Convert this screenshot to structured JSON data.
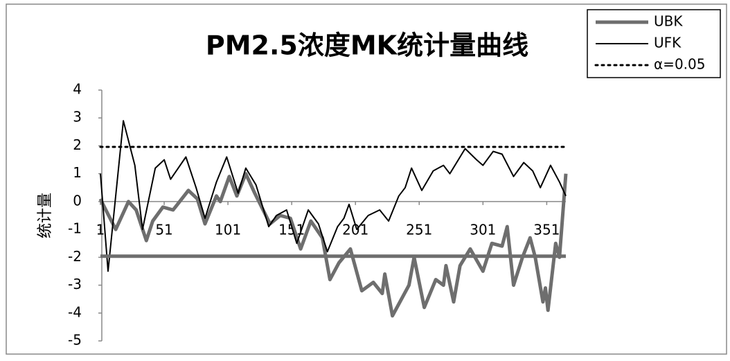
{
  "chart_data": {
    "type": "line",
    "title": "PM2.5浓度MK统计量曲线",
    "y_label": "统计量",
    "xlim": [
      1,
      366
    ],
    "xticks": [
      1,
      51,
      101,
      151,
      201,
      251,
      301,
      351
    ],
    "ylim": [
      -5,
      4
    ],
    "yticks": [
      -5,
      -4,
      -3,
      -2,
      -1,
      0,
      1,
      2,
      3,
      4
    ],
    "legend": "top-right",
    "series": [
      {
        "name": "UBK",
        "color": "#6e6e6e",
        "width": 5,
        "style": "solid",
        "x": [
          1,
          3,
          13,
          23,
          29,
          37,
          42,
          50,
          58,
          70,
          77,
          83,
          92,
          95,
          102,
          108,
          115,
          122,
          134,
          142,
          150,
          158,
          166,
          175,
          181,
          188,
          197,
          206,
          215,
          222,
          224,
          230,
          243,
          247,
          255,
          264,
          270,
          272,
          278,
          283,
          291,
          301,
          308,
          316,
          320,
          325,
          332,
          338,
          342,
          348,
          350,
          352,
          358,
          361,
          366
        ],
        "values": [
          0.1,
          -0.1,
          -1.0,
          0.0,
          -0.3,
          -1.4,
          -0.7,
          -0.2,
          -0.3,
          0.4,
          0.1,
          -0.8,
          0.2,
          0.0,
          0.9,
          0.2,
          1.0,
          0.3,
          -0.8,
          -0.5,
          -0.6,
          -1.7,
          -0.7,
          -1.3,
          -2.8,
          -2.2,
          -1.7,
          -3.2,
          -2.9,
          -3.3,
          -2.6,
          -4.1,
          -3.0,
          -2.0,
          -3.8,
          -2.8,
          -3.0,
          -2.3,
          -3.6,
          -2.3,
          -1.7,
          -2.5,
          -1.5,
          -1.6,
          -0.9,
          -3.0,
          -2.0,
          -1.3,
          -2.0,
          -3.6,
          -3.1,
          -3.9,
          -1.5,
          -2.0,
          1.0
        ]
      },
      {
        "name": "UFK",
        "color": "#000000",
        "width": 2,
        "style": "solid",
        "x": [
          1,
          7,
          19,
          28,
          34,
          44,
          51,
          56,
          68,
          76,
          83,
          92,
          100,
          109,
          115,
          123,
          133,
          139,
          147,
          155,
          164,
          172,
          179,
          187,
          192,
          196,
          202,
          211,
          220,
          227,
          235,
          240,
          245,
          253,
          262,
          270,
          275,
          287,
          296,
          301,
          309,
          316,
          325,
          333,
          340,
          346,
          354,
          361,
          366
        ],
        "values": [
          1.0,
          -2.5,
          2.9,
          1.3,
          -1.0,
          1.2,
          1.5,
          0.8,
          1.6,
          0.5,
          -0.6,
          0.7,
          1.6,
          0.3,
          1.2,
          0.6,
          -0.9,
          -0.5,
          -0.3,
          -1.5,
          -0.3,
          -0.8,
          -1.8,
          -0.9,
          -0.6,
          -0.1,
          -1.0,
          -0.5,
          -0.3,
          -0.7,
          0.2,
          0.5,
          1.2,
          0.4,
          1.1,
          1.3,
          1.0,
          1.9,
          1.5,
          1.3,
          1.8,
          1.7,
          0.9,
          1.4,
          1.1,
          0.5,
          1.3,
          0.7,
          0.2
        ]
      },
      {
        "name": "α=0.05",
        "color": "#000000",
        "width": 3,
        "style": "dotted",
        "hline": 1.96
      },
      {
        "color": "#6e6e6e",
        "width": 5,
        "style": "solid",
        "hline": -1.96
      }
    ]
  }
}
